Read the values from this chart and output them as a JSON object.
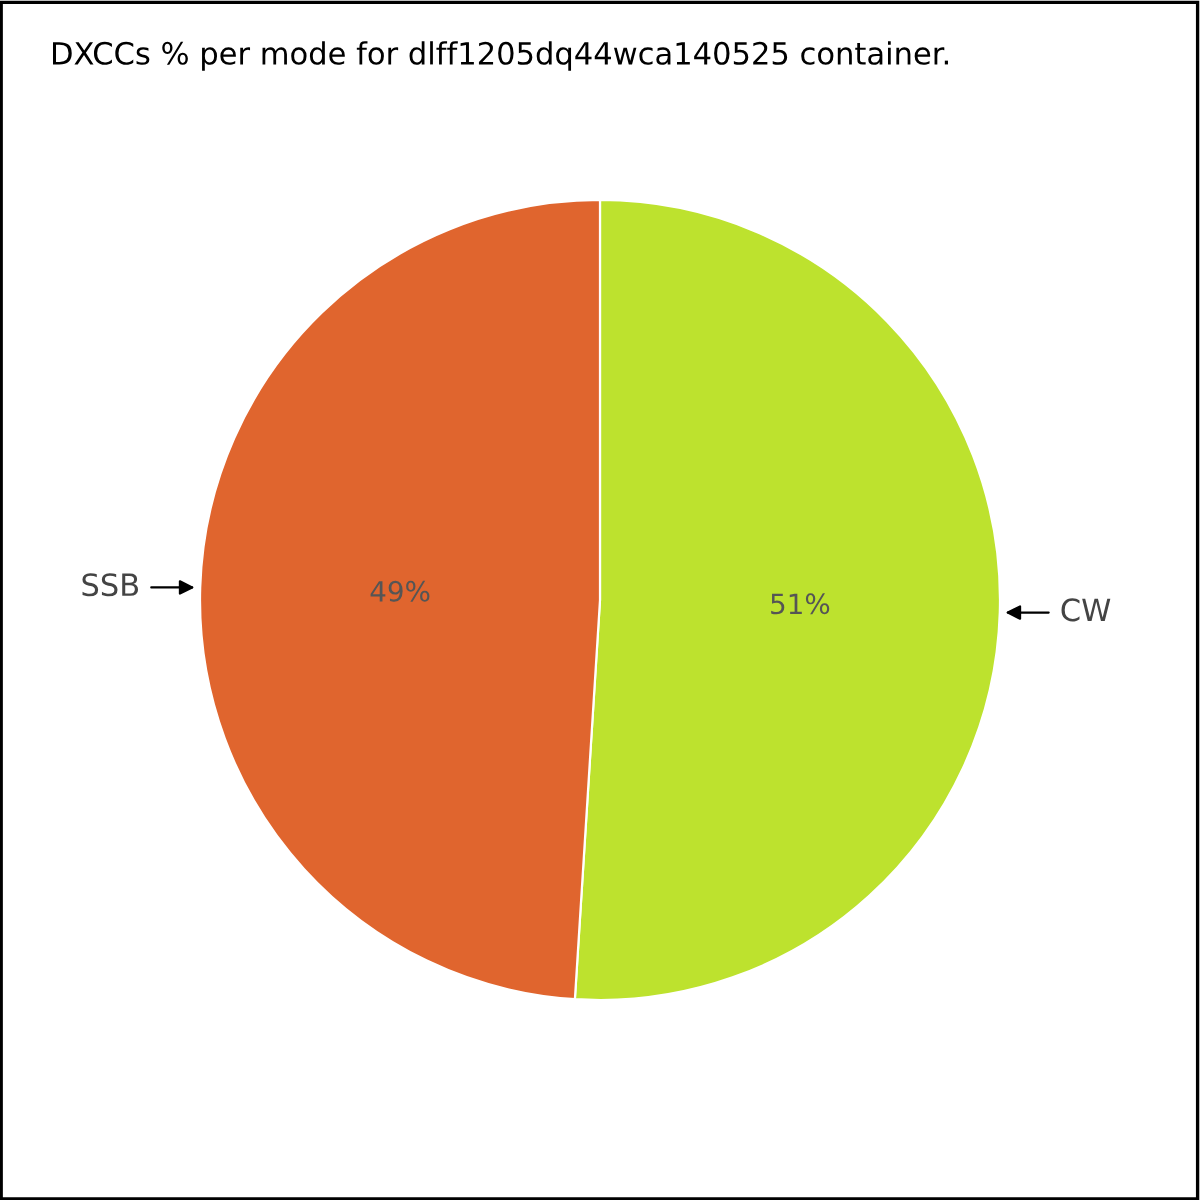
{
  "chart_data": {
    "type": "pie",
    "title": "DXCCs % per mode for dlff1205dq44wca140525 container.",
    "categories": [
      "CW",
      "SSB"
    ],
    "values": [
      51,
      49
    ],
    "colors": [
      "#bde22e",
      "#e0652e"
    ],
    "value_labels": [
      "51%",
      "49%"
    ]
  }
}
